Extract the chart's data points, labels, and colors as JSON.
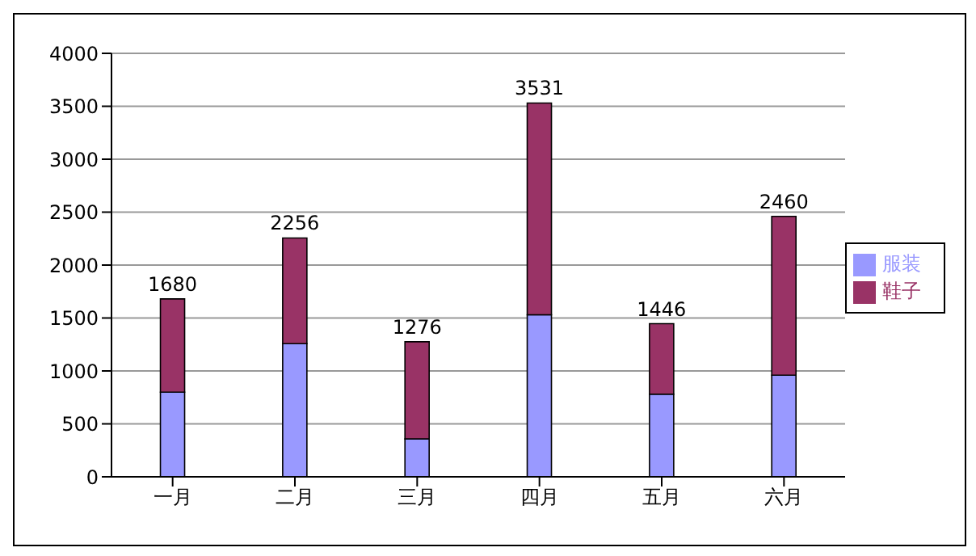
{
  "chart_data": {
    "type": "bar",
    "stacked": true,
    "categories": [
      "一月",
      "二月",
      "三月",
      "四月",
      "五月",
      "六月"
    ],
    "series": [
      {
        "name": "服装",
        "color": "#9999ff",
        "values": [
          800,
          1258,
          358,
          1530,
          780,
          960
        ]
      },
      {
        "name": "鞋子",
        "color": "#993366",
        "values": [
          880,
          998,
          918,
          2001,
          666,
          1500
        ]
      }
    ],
    "totals": [
      "1680",
      "2256",
      "1276",
      "3531",
      "1446",
      "2460"
    ],
    "ylim": [
      0,
      4000
    ],
    "yticks": [
      0,
      500,
      1000,
      1500,
      2000,
      2500,
      3000,
      3500,
      4000
    ],
    "grid": "y",
    "legend": "right"
  }
}
